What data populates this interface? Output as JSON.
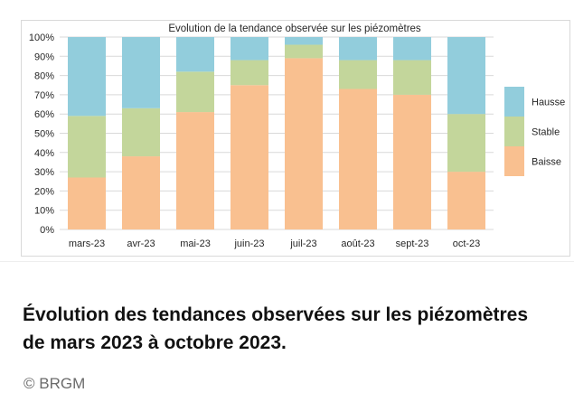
{
  "chart_data": {
    "type": "bar",
    "stacked": true,
    "title": "Evolution de la tendance observée sur les piézomètres",
    "categories": [
      "mars-23",
      "avr-23",
      "mai-23",
      "juin-23",
      "juil-23",
      "août-23",
      "sept-23",
      "oct-23"
    ],
    "series": [
      {
        "name": "Baisse",
        "color": "#f9c090",
        "values": [
          27,
          38,
          61,
          75,
          89,
          73,
          70,
          30
        ]
      },
      {
        "name": "Stable",
        "color": "#c3d69b",
        "values": [
          32,
          25,
          21,
          13,
          7,
          15,
          18,
          30
        ]
      },
      {
        "name": "Hausse",
        "color": "#92cddc",
        "values": [
          41,
          37,
          18,
          12,
          4,
          12,
          12,
          40
        ]
      }
    ],
    "y_ticks": [
      "0%",
      "10%",
      "20%",
      "30%",
      "40%",
      "50%",
      "60%",
      "70%",
      "80%",
      "90%",
      "100%"
    ],
    "ylim": [
      0,
      100
    ],
    "grid": true,
    "legend": "right"
  },
  "caption": "Évolution des tendances observées sur les piézomètres de mars 2023 à octobre 2023.",
  "credit": "© BRGM"
}
